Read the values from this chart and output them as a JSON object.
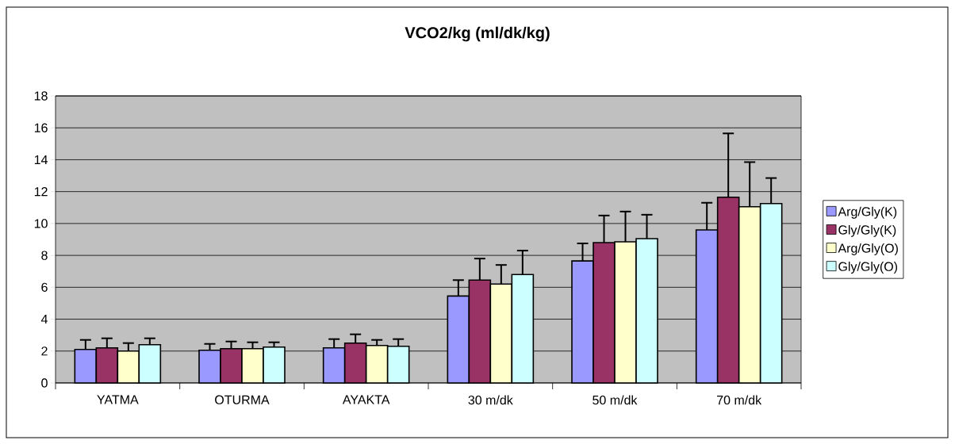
{
  "chart_data": {
    "type": "bar",
    "title": "VCO2/kg (ml/dk/kg)",
    "categories": [
      "YATMA",
      "OTURMA",
      "AYAKTA",
      "30 m/dk",
      "50 m/dk",
      "70 m/dk"
    ],
    "series": [
      {
        "name": "Arg/Gly(K)",
        "color": "#9999ff",
        "values": [
          2.1,
          2.05,
          2.2,
          5.45,
          7.65,
          9.6
        ],
        "errors": [
          [
            2.1,
            2.7
          ],
          [
            2.05,
            2.45
          ],
          [
            2.2,
            2.75
          ],
          [
            5.45,
            6.45
          ],
          [
            7.65,
            8.75
          ],
          [
            9.6,
            11.3
          ]
        ]
      },
      {
        "name": "Gly/Gly(K)",
        "color": "#993366",
        "values": [
          2.2,
          2.15,
          2.5,
          6.45,
          8.8,
          11.65
        ],
        "errors": [
          [
            2.2,
            2.8
          ],
          [
            2.15,
            2.6
          ],
          [
            2.5,
            3.05
          ],
          [
            6.45,
            7.8
          ],
          [
            8.8,
            10.5
          ],
          [
            11.65,
            15.65
          ]
        ]
      },
      {
        "name": "Arg/Gly(O)",
        "color": "#ffffcc",
        "values": [
          2.0,
          2.15,
          2.35,
          6.2,
          8.85,
          11.05
        ],
        "errors": [
          [
            2.0,
            2.5
          ],
          [
            2.15,
            2.55
          ],
          [
            2.35,
            2.7
          ],
          [
            6.2,
            7.4
          ],
          [
            8.85,
            10.75
          ],
          [
            11.05,
            13.85
          ]
        ]
      },
      {
        "name": "Gly/Gly(O)",
        "color": "#ccffff",
        "values": [
          2.4,
          2.25,
          2.3,
          6.8,
          9.05,
          11.25
        ],
        "errors": [
          [
            2.4,
            2.8
          ],
          [
            2.25,
            2.55
          ],
          [
            2.3,
            2.75
          ],
          [
            6.8,
            8.3
          ],
          [
            9.05,
            10.55
          ],
          [
            11.25,
            12.85
          ]
        ]
      }
    ],
    "ylim": [
      0,
      18
    ],
    "yticks": [
      0,
      2,
      4,
      6,
      8,
      10,
      12,
      14,
      16,
      18
    ],
    "grid": "y",
    "legend": "right"
  }
}
